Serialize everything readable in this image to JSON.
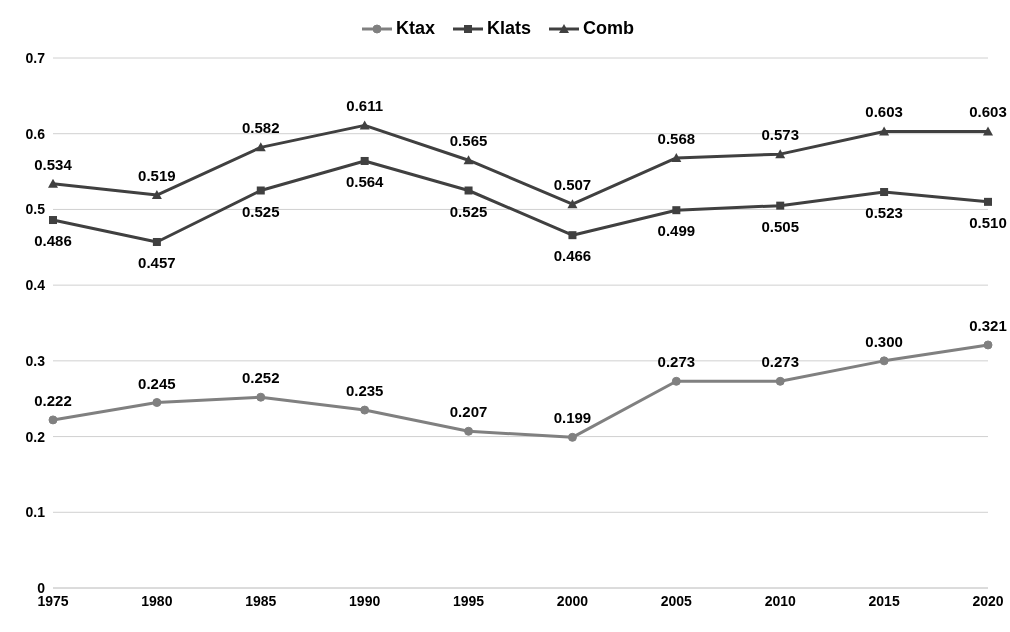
{
  "chart_data": {
    "type": "line",
    "categories": [
      "1975",
      "1980",
      "1985",
      "1990",
      "1995",
      "2000",
      "2005",
      "2010",
      "2015",
      "2020"
    ],
    "series": [
      {
        "name": "Ktax",
        "color": "#808080",
        "marker": "circle",
        "values": [
          0.222,
          0.245,
          0.252,
          0.235,
          0.207,
          0.199,
          0.273,
          0.273,
          0.3,
          0.321
        ],
        "value_labels": [
          "0.222",
          "0.245",
          "0.252",
          "0.235",
          "0.207",
          "0.199",
          "0.273",
          "0.273",
          "0.300",
          "0.321"
        ]
      },
      {
        "name": "Klats",
        "color": "#404040",
        "marker": "square",
        "values": [
          0.486,
          0.457,
          0.525,
          0.564,
          0.525,
          0.466,
          0.499,
          0.505,
          0.523,
          0.51
        ],
        "value_labels": [
          "0.486",
          "0.457",
          "0.525",
          "0.564",
          "0.525",
          "0.466",
          "0.499",
          "0.505",
          "0.523",
          "0.510"
        ]
      },
      {
        "name": "Comb",
        "color": "#404040",
        "marker": "triangle",
        "values": [
          0.534,
          0.519,
          0.582,
          0.611,
          0.565,
          0.507,
          0.568,
          0.573,
          0.603,
          0.603
        ],
        "value_labels": [
          "0.534",
          "0.519",
          "0.582",
          "0.611",
          "0.565",
          "0.507",
          "0.568",
          "0.573",
          "0.603",
          "0.603"
        ]
      }
    ],
    "ylim": [
      0,
      0.7
    ],
    "yticks": [
      0,
      0.1,
      0.2,
      0.3,
      0.4,
      0.5,
      0.6,
      0.7
    ],
    "grid": "y",
    "legend": "top",
    "line_style": "solid"
  }
}
